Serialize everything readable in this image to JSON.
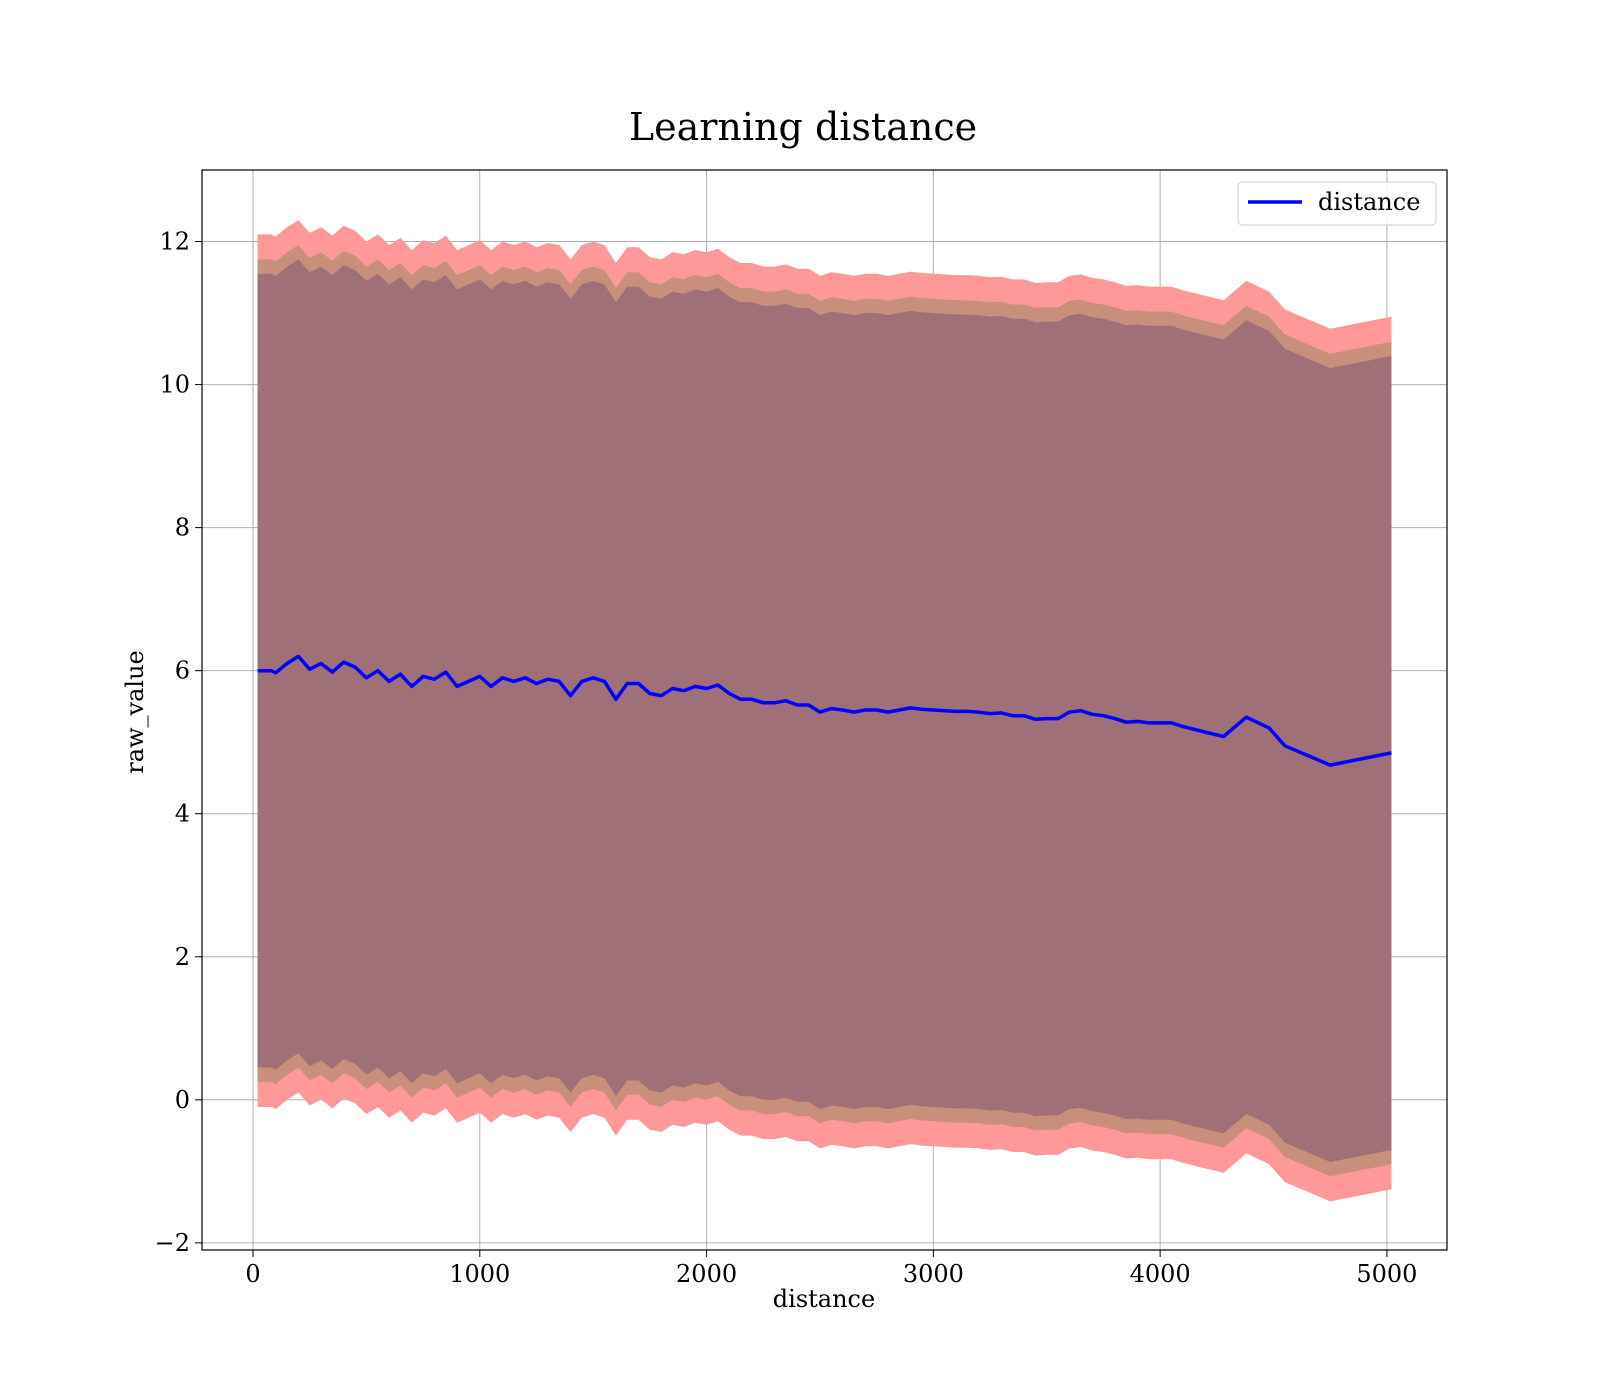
{
  "chart_data": {
    "type": "line",
    "title": "Learning distance",
    "xlabel": "distance",
    "ylabel": "raw_value",
    "xlim": [
      -225,
      5265
    ],
    "ylim": [
      -2.1,
      13.0
    ],
    "grid": true,
    "legend_position": "top-right",
    "x_ticks": [
      0,
      1000,
      2000,
      3000,
      4000,
      5000
    ],
    "x_tick_labels": [
      "0",
      "1000",
      "2000",
      "3000",
      "4000",
      "5000"
    ],
    "y_ticks": [
      -2,
      0,
      2,
      4,
      6,
      8,
      10,
      12
    ],
    "y_tick_labels": [
      "−2",
      "0",
      "2",
      "4",
      "6",
      "8",
      "10",
      "12"
    ],
    "colors": {
      "line": "#0000ff",
      "band_outer": "#ff9999",
      "band_middle": "#c8907a",
      "band_inner": "#a07078",
      "grid": "#b0b0b0"
    },
    "x": [
      20,
      80,
      100,
      150,
      200,
      250,
      300,
      350,
      400,
      450,
      500,
      550,
      600,
      650,
      700,
      750,
      800,
      850,
      900,
      950,
      1000,
      1050,
      1100,
      1150,
      1200,
      1250,
      1300,
      1350,
      1400,
      1450,
      1500,
      1550,
      1600,
      1650,
      1700,
      1750,
      1800,
      1850,
      1900,
      1950,
      2000,
      2050,
      2100,
      2150,
      2200,
      2250,
      2300,
      2350,
      2400,
      2450,
      2500,
      2550,
      2600,
      2650,
      2700,
      2750,
      2800,
      2850,
      2900,
      2950,
      3000,
      3050,
      3100,
      3150,
      3200,
      3250,
      3300,
      3350,
      3400,
      3450,
      3500,
      3550,
      3600,
      3650,
      3700,
      3750,
      3800,
      3850,
      3900,
      3950,
      4000,
      4050,
      4100,
      4150,
      4200,
      4280,
      4380,
      4480,
      4550,
      4750,
      5020
    ],
    "series": [
      {
        "name": "distance",
        "values": [
          6.0,
          6.0,
          5.97,
          6.1,
          6.2,
          6.02,
          6.1,
          5.98,
          6.12,
          6.05,
          5.9,
          6.0,
          5.85,
          5.95,
          5.78,
          5.92,
          5.88,
          5.98,
          5.78,
          5.85,
          5.92,
          5.78,
          5.9,
          5.85,
          5.9,
          5.82,
          5.88,
          5.85,
          5.65,
          5.85,
          5.9,
          5.85,
          5.6,
          5.82,
          5.82,
          5.68,
          5.65,
          5.75,
          5.72,
          5.78,
          5.75,
          5.8,
          5.68,
          5.6,
          5.6,
          5.55,
          5.55,
          5.58,
          5.52,
          5.52,
          5.42,
          5.47,
          5.45,
          5.42,
          5.45,
          5.45,
          5.42,
          5.45,
          5.48,
          5.46,
          5.45,
          5.44,
          5.43,
          5.43,
          5.42,
          5.4,
          5.41,
          5.37,
          5.37,
          5.32,
          5.33,
          5.33,
          5.42,
          5.44,
          5.39,
          5.37,
          5.33,
          5.28,
          5.29,
          5.27,
          5.27,
          5.27,
          5.22,
          5.18,
          5.14,
          5.08,
          5.35,
          5.2,
          4.95,
          4.68,
          4.85
        ]
      }
    ],
    "bands": [
      {
        "half_width": 6.1
      },
      {
        "half_width": 5.75
      },
      {
        "half_width": 5.55
      }
    ]
  }
}
